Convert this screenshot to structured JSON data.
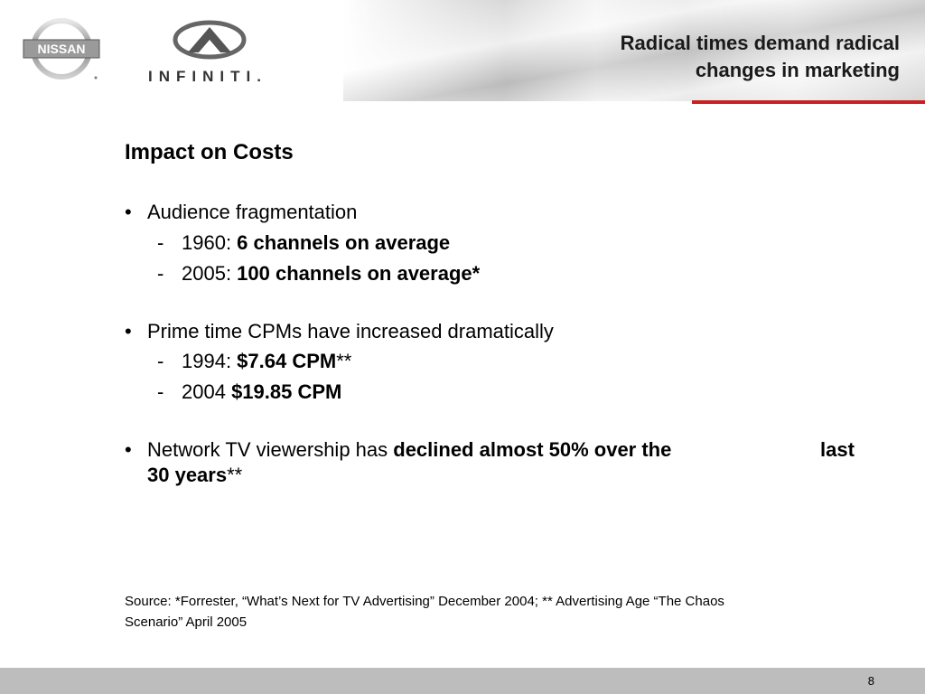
{
  "header": {
    "title_line1": "Radical times demand radical",
    "title_line2": "changes in marketing",
    "nissan_logo_text": "NISSAN",
    "infiniti_logo_text": "INFINITI."
  },
  "content": {
    "heading": "Impact on Costs",
    "bullet_symbol": "•",
    "dash_symbol": "-",
    "bullet1": {
      "text": "Audience fragmentation",
      "sub1_prefix": "1960: ",
      "sub1_bold": "6 channels on average",
      "sub2_prefix": "2005: ",
      "sub2_bold": "100 channels on average*"
    },
    "bullet2": {
      "text": "Prime time CPMs have increased dramatically",
      "sub1_prefix": "1994: ",
      "sub1_bold": "$7.64 CPM",
      "sub1_suffix": "**",
      "sub2_prefix": "2004 ",
      "sub2_bold": "$19.85 CPM"
    },
    "bullet3": {
      "text_prefix": "Network TV viewership has ",
      "text_bold": "declined almost 50% over the",
      "text_bold_end": "last",
      "line2_bold": "30 years",
      "line2_suffix": "**"
    },
    "source_line1": "Source: *Forrester, “What’s Next for TV Advertising” December 2004; ** Advertising Age “The Chaos",
    "source_line2": "Scenario” April 2005"
  },
  "footer": {
    "page_number": "8"
  },
  "colors": {
    "accent_red": "#cc1f1f",
    "footer_gray": "#bdbdbd"
  }
}
